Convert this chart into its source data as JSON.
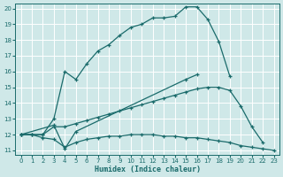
{
  "xlabel": "Humidex (Indice chaleur)",
  "xlim": [
    -0.5,
    23.5
  ],
  "ylim": [
    10.7,
    20.3
  ],
  "yticks": [
    11,
    12,
    13,
    14,
    15,
    16,
    17,
    18,
    19,
    20
  ],
  "xticks": [
    0,
    1,
    2,
    3,
    4,
    5,
    6,
    7,
    8,
    9,
    10,
    11,
    12,
    13,
    14,
    15,
    16,
    17,
    18,
    19,
    20,
    21,
    22,
    23
  ],
  "bg_color": "#cfe8e8",
  "line_color": "#1a6b6b",
  "grid_color": "#ffffff",
  "lines": [
    {
      "x": [
        0,
        1,
        2,
        3,
        4,
        5,
        6,
        7,
        8,
        9,
        10,
        11,
        12,
        13,
        14,
        15,
        16,
        17,
        18,
        19
      ],
      "y": [
        12,
        12,
        12,
        13,
        16,
        15.5,
        16.5,
        17.3,
        17.7,
        18.3,
        18.8,
        19.0,
        19.4,
        19.4,
        19.5,
        20.1,
        20.1,
        19.3,
        17.9,
        15.7
      ]
    },
    {
      "x": [
        0,
        3,
        4,
        5,
        15,
        16
      ],
      "y": [
        12,
        12.6,
        11.1,
        12.2,
        15.5,
        15.8
      ]
    },
    {
      "x": [
        0,
        1,
        2,
        3,
        4,
        5,
        6,
        7,
        8,
        9,
        10,
        11,
        12,
        13,
        14,
        15,
        16,
        17,
        18,
        19,
        20,
        21,
        22
      ],
      "y": [
        12,
        12,
        12,
        12.5,
        12.5,
        12.7,
        12.9,
        13.1,
        13.3,
        13.5,
        13.7,
        13.9,
        14.1,
        14.3,
        14.5,
        14.7,
        14.9,
        15.0,
        15.0,
        14.8,
        13.8,
        12.5,
        11.5
      ]
    },
    {
      "x": [
        0,
        1,
        2,
        3,
        4,
        5,
        6,
        7,
        8,
        9,
        10,
        11,
        12,
        13,
        14,
        15,
        16,
        17,
        18,
        19,
        20,
        21,
        22,
        23
      ],
      "y": [
        12,
        12,
        11.8,
        11.7,
        11.2,
        11.5,
        11.7,
        11.8,
        11.9,
        11.9,
        12.0,
        12.0,
        12.0,
        11.9,
        11.9,
        11.8,
        11.8,
        11.7,
        11.6,
        11.5,
        11.3,
        11.2,
        11.1,
        11.0
      ]
    }
  ]
}
